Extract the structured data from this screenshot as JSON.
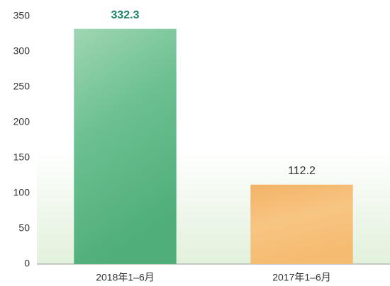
{
  "chart_data": {
    "type": "bar",
    "categories": [
      "2018年1–6月",
      "2017年1–6月"
    ],
    "values": [
      332.3,
      112.2
    ],
    "colors": [
      "#5db684",
      "#f4b768"
    ],
    "value_label_colors": [
      "#1b8566",
      "#333333"
    ],
    "ylim": [
      0,
      350
    ],
    "yticks": [
      0,
      50,
      100,
      150,
      200,
      250,
      300,
      350
    ],
    "grid": false
  }
}
